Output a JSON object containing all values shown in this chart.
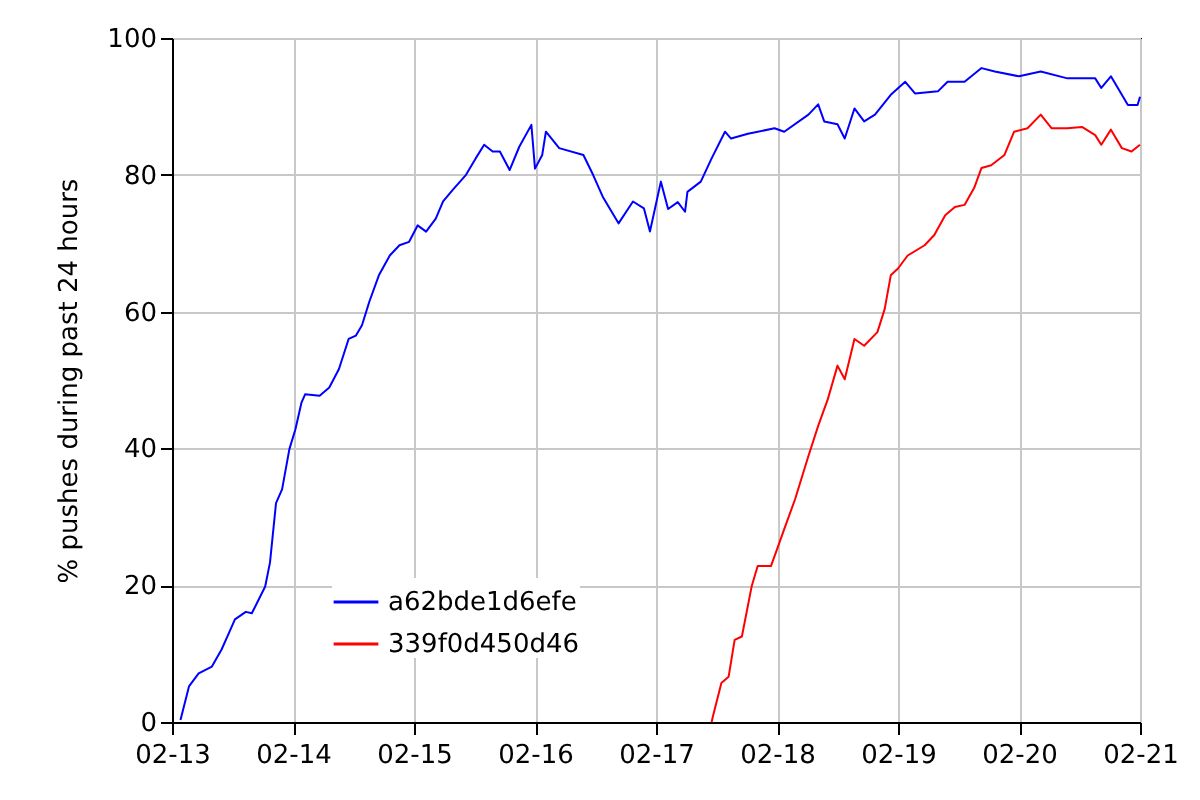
{
  "chart_data": {
    "type": "line",
    "ylabel": "% pushes during past 24 hours",
    "x": [
      "--02-13T01:41",
      "--02-13T03:22",
      "--02-13T05:17",
      "--02-13T07:55",
      "--02-13T09:50",
      "--02-13T11:17",
      "--02-13T12:29",
      "--02-13T14:38",
      "--02-13T15:50",
      "--02-13T18:29",
      "--02-13T19:26",
      "--02-13T20:38",
      "--02-13T21:50",
      "--02-13T23:17",
      "--02-14T00:29",
      "--02-14T01:41",
      "--02-14T02:24",
      "--02-14T05:17",
      "--02-14T07:12",
      "--02-14T09:07",
      "--02-14T11:02",
      "--02-14T12:29",
      "--02-14T13:41",
      "--02-14T15:07",
      "--02-14T17:02",
      "--02-14T19:12",
      "--02-14T21:07",
      "--02-14T23:02",
      "--02-15T00:43",
      "--02-15T02:24",
      "--02-15T04:19",
      "--02-15T05:46",
      "--02-15T07:41",
      "--02-15T10:19",
      "--02-15T12:14",
      "--02-15T13:55",
      "--02-15T15:36",
      "--02-15T17:02",
      "--02-15T18:58",
      "--02-15T20:53",
      "--02-15T23:17",
      "--02-16T00:00",
      "--02-16T01:26",
      "--02-16T02:10",
      "--02-16T04:48",
      "--02-16T09:36",
      "--02-16T11:31",
      "--02-16T13:26",
      "--02-16T16:34",
      "--02-16T19:26",
      "--02-16T21:36",
      "--02-16T22:48",
      "--02-17T00:58",
      "--02-17T02:24",
      "--02-17T04:19",
      "--02-17T05:46",
      "--02-17T06:14",
      "--02-17T08:53",
      "--02-17T11:02",
      "--02-17T13:41",
      "--02-17T14:53",
      "--02-17T18:14",
      "--02-17T23:31",
      "--02-18T01:26",
      "--02-18T06:14",
      "--02-18T08:10",
      "--02-18T09:22",
      "--02-18T12:00",
      "--02-18T13:26",
      "--02-18T15:22",
      "--02-18T17:17",
      "--02-18T19:26",
      "--02-18T22:34",
      "--02-19T01:26",
      "--02-19T03:22",
      "--02-19T07:55",
      "--02-19T09:50",
      "--02-19T13:12",
      "--02-19T16:34",
      "--02-19T19:12",
      "--02-20T00:00",
      "--02-20T04:19",
      "--02-20T09:36",
      "--02-20T15:07",
      "--02-20T16:19",
      "--02-20T18:14",
      "--02-20T20:24",
      "--02-20T21:36",
      "--02-20T23:31",
      "--02-21T00:00"
    ],
    "series": [
      {
        "name": "a62bde1d6efe",
        "color": "#0000ff",
        "values": [
          0.3,
          5.2,
          7.1,
          8.1,
          10.6,
          13,
          15,
          16.1,
          15.9,
          19.8,
          23.3,
          32,
          34,
          39.9,
          42.8,
          46.7,
          47.9,
          47.7,
          48.9,
          51.6,
          56,
          56.5,
          58,
          61.4,
          65.3,
          68.2,
          69.7,
          70.2,
          72.6,
          71.7,
          73.6,
          76.1,
          77.8,
          80,
          82.4,
          84.4,
          83.4,
          83.4,
          80.7,
          84.1,
          87.3,
          80.9,
          82.9,
          86.3,
          83.9,
          82.9,
          80,
          76.8,
          72.9,
          76.1,
          75.1,
          71.7,
          79,
          75,
          76,
          74.6,
          77.5,
          79,
          82.4,
          86.3,
          85.3,
          86,
          86.8,
          86.3,
          88.8,
          90.3,
          87.8,
          87.4,
          85.3,
          89.7,
          87.8,
          88.8,
          91.7,
          93.6,
          91.9,
          92.2,
          93.6,
          93.6,
          95.6,
          95.1,
          94.4,
          95.1,
          94.1,
          94.1,
          92.7,
          94.4,
          91.7,
          90.2,
          90.2,
          91.4
        ]
      },
      {
        "name": "339f0d450d46",
        "color": "#ff0000",
        "x": [
          "--02-17T11:02",
          "--02-17T11:17",
          "--02-17T12:58",
          "--02-17T14:24",
          "--02-17T15:36",
          "--02-17T17:02",
          "--02-17T18:58",
          "--02-17T20:10",
          "--02-17T22:48",
          "--02-18T00:14",
          "--02-18T01:26",
          "--02-18T03:36",
          "--02-18T06:14",
          "--02-18T08:10",
          "--02-18T10:05",
          "--02-18T12:00",
          "--02-18T13:26",
          "--02-18T15:22",
          "--02-18T17:17",
          "--02-18T19:55",
          "--02-18T21:22",
          "--02-18T22:34",
          "--02-19T00:00",
          "--02-19T01:55",
          "--02-19T05:17",
          "--02-19T07:12",
          "--02-19T09:22",
          "--02-19T11:17",
          "--02-19T13:12",
          "--02-19T15:07",
          "--02-19T16:34",
          "--02-19T18:29",
          "--02-19T21:07",
          "--02-19T23:02",
          "--02-20T01:41",
          "--02-20T04:19",
          "--02-20T06:29",
          "--02-20T09:36",
          "--02-20T12:29",
          "--02-20T15:07",
          "--02-20T16:19",
          "--02-20T18:14",
          "--02-20T20:24",
          "--02-20T22:19",
          "--02-21T00:00"
        ],
        "values": [
          0,
          0.8,
          5.7,
          6.6,
          12,
          12.5,
          19.8,
          22.8,
          22.8,
          25.7,
          28.2,
          32.6,
          38.9,
          43.3,
          47.2,
          52.1,
          50.1,
          56,
          55,
          57,
          60.4,
          65.3,
          66.3,
          68.2,
          69.7,
          71.2,
          74.1,
          75.3,
          75.6,
          78.1,
          81,
          81.4,
          82.9,
          86.3,
          86.8,
          88.8,
          86.8,
          86.8,
          87,
          85.8,
          84.4,
          86.6,
          83.9,
          83.4,
          84.4
        ]
      }
    ],
    "xlim": [
      "--02-13",
      "--02-21"
    ],
    "xticks": [
      {
        "value": "--02-13",
        "label": "02-13"
      },
      {
        "value": "--02-14",
        "label": "02-14"
      },
      {
        "value": "--02-15",
        "label": "02-15"
      },
      {
        "value": "--02-16",
        "label": "02-16"
      },
      {
        "value": "--02-17",
        "label": "02-17"
      },
      {
        "value": "--02-18",
        "label": "02-18"
      },
      {
        "value": "--02-19",
        "label": "02-19"
      },
      {
        "value": "--02-20",
        "label": "02-20"
      },
      {
        "value": "--02-21",
        "label": "02-21"
      }
    ],
    "ylim": [
      0,
      100
    ],
    "yticks": [
      0,
      20,
      40,
      60,
      80,
      100
    ],
    "grid": true,
    "legend": "bottom left"
  }
}
